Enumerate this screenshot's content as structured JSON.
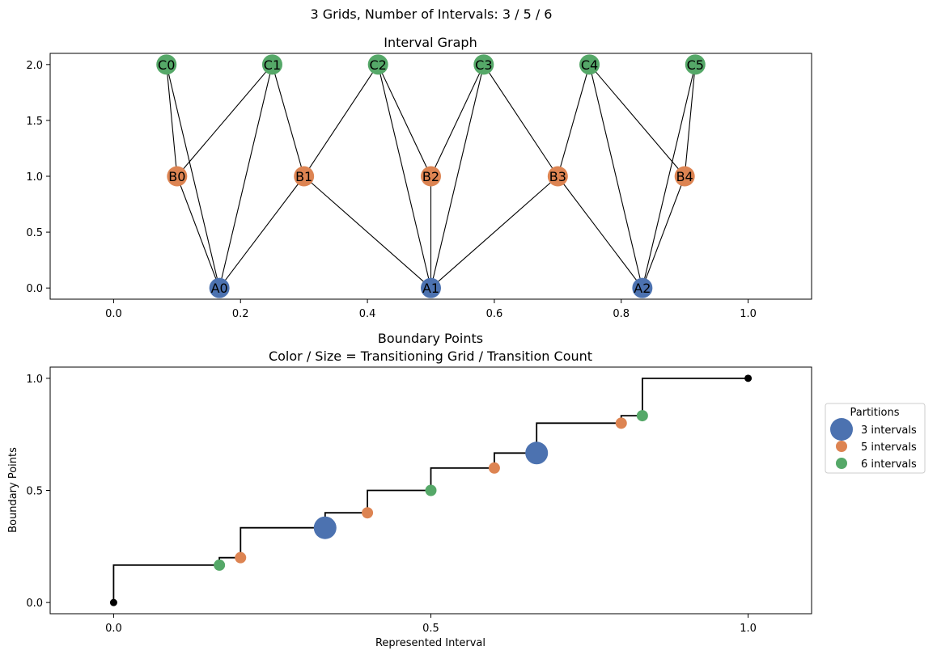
{
  "suptitle": "3 Grids, Number of Intervals: 3 / 5 / 6",
  "chart_data": [
    {
      "type": "scatter",
      "subtype": "graph",
      "title": "Interval Graph",
      "xlabel": "",
      "ylabel": "",
      "xlim": [
        -0.1,
        1.1
      ],
      "ylim": [
        -0.1,
        2.1
      ],
      "x_ticks": [
        0.0,
        0.2,
        0.4,
        0.6,
        0.8,
        1.0
      ],
      "x_tick_labels": [
        "0.0",
        "0.2",
        "0.4",
        "0.6",
        "0.8",
        "1.0"
      ],
      "y_ticks": [
        0.0,
        0.5,
        1.0,
        1.5,
        2.0
      ],
      "y_tick_labels": [
        "0.0",
        "0.5",
        "1.0",
        "1.5",
        "2.0"
      ],
      "grid": false,
      "colors": {
        "A": "#4c72b0",
        "B": "#dd8452",
        "C": "#55a868"
      },
      "nodes": [
        {
          "id": "A0",
          "label": "A0",
          "group": "A",
          "x": 0.1667,
          "y": 0
        },
        {
          "id": "A1",
          "label": "A1",
          "group": "A",
          "x": 0.5,
          "y": 0
        },
        {
          "id": "A2",
          "label": "A2",
          "group": "A",
          "x": 0.8333,
          "y": 0
        },
        {
          "id": "B0",
          "label": "B0",
          "group": "B",
          "x": 0.1,
          "y": 1
        },
        {
          "id": "B1",
          "label": "B1",
          "group": "B",
          "x": 0.3,
          "y": 1
        },
        {
          "id": "B2",
          "label": "B2",
          "group": "B",
          "x": 0.5,
          "y": 1
        },
        {
          "id": "B3",
          "label": "B3",
          "group": "B",
          "x": 0.7,
          "y": 1
        },
        {
          "id": "B4",
          "label": "B4",
          "group": "B",
          "x": 0.9,
          "y": 1
        },
        {
          "id": "C0",
          "label": "C0",
          "group": "C",
          "x": 0.0833,
          "y": 2
        },
        {
          "id": "C1",
          "label": "C1",
          "group": "C",
          "x": 0.25,
          "y": 2
        },
        {
          "id": "C2",
          "label": "C2",
          "group": "C",
          "x": 0.4167,
          "y": 2
        },
        {
          "id": "C3",
          "label": "C3",
          "group": "C",
          "x": 0.5833,
          "y": 2
        },
        {
          "id": "C4",
          "label": "C4",
          "group": "C",
          "x": 0.75,
          "y": 2
        },
        {
          "id": "C5",
          "label": "C5",
          "group": "C",
          "x": 0.9167,
          "y": 2
        }
      ],
      "edges": [
        [
          "C0",
          "B0"
        ],
        [
          "C0",
          "A0"
        ],
        [
          "C1",
          "B0"
        ],
        [
          "C1",
          "A0"
        ],
        [
          "C1",
          "B1"
        ],
        [
          "B0",
          "A0"
        ],
        [
          "B1",
          "A0"
        ],
        [
          "C2",
          "B1"
        ],
        [
          "C2",
          "B2"
        ],
        [
          "C2",
          "A1"
        ],
        [
          "C3",
          "B2"
        ],
        [
          "C3",
          "A1"
        ],
        [
          "C3",
          "B3"
        ],
        [
          "B1",
          "A1"
        ],
        [
          "B2",
          "A1"
        ],
        [
          "B3",
          "A1"
        ],
        [
          "C4",
          "B3"
        ],
        [
          "C4",
          "B4"
        ],
        [
          "C4",
          "A2"
        ],
        [
          "C5",
          "B4"
        ],
        [
          "C5",
          "A2"
        ],
        [
          "B3",
          "A2"
        ],
        [
          "B4",
          "A2"
        ]
      ]
    },
    {
      "type": "scatter",
      "title": "Boundary Points\nColor / Size = Transitioning Grid / Transition Count",
      "title_lines": [
        "Boundary Points",
        "Color / Size = Transitioning Grid / Transition Count"
      ],
      "xlabel": "Represented Interval",
      "ylabel": "Boundary Points",
      "xlim": [
        -0.1,
        1.1
      ],
      "ylim": [
        -0.05,
        1.05
      ],
      "x_ticks": [
        0.0,
        0.5,
        1.0
      ],
      "x_tick_labels": [
        "0.0",
        "0.5",
        "1.0"
      ],
      "y_ticks": [
        0.0,
        0.5,
        1.0
      ],
      "y_tick_labels": [
        "0.0",
        "0.5",
        "1.0"
      ],
      "grid": false,
      "step_color": "#000000",
      "step_points": [
        [
          0,
          0
        ],
        [
          0,
          0.1667
        ],
        [
          0.1667,
          0.1667
        ],
        [
          0.1667,
          0.2
        ],
        [
          0.2,
          0.2
        ],
        [
          0.2,
          0.3333
        ],
        [
          0.3333,
          0.3333
        ],
        [
          0.3333,
          0.4
        ],
        [
          0.4,
          0.4
        ],
        [
          0.4,
          0.5
        ],
        [
          0.5,
          0.5
        ],
        [
          0.5,
          0.6
        ],
        [
          0.6,
          0.6
        ],
        [
          0.6,
          0.6667
        ],
        [
          0.6667,
          0.6667
        ],
        [
          0.6667,
          0.8
        ],
        [
          0.8,
          0.8
        ],
        [
          0.8,
          0.8333
        ],
        [
          0.8333,
          0.8333
        ],
        [
          0.8333,
          1.0
        ],
        [
          1.0,
          1.0
        ]
      ],
      "endpoints": [
        {
          "x": 0,
          "y": 0,
          "color": "#000000"
        },
        {
          "x": 1.0,
          "y": 1.0,
          "color": "#000000"
        }
      ],
      "series": [
        {
          "name": "3 intervals",
          "color": "#4c72b0",
          "size": 3,
          "x": [
            0.3333,
            0.6667
          ],
          "y": [
            0.3333,
            0.6667
          ]
        },
        {
          "name": "5 intervals",
          "color": "#dd8452",
          "size": 1,
          "x": [
            0.2,
            0.4,
            0.6,
            0.8
          ],
          "y": [
            0.2,
            0.4,
            0.6,
            0.8
          ]
        },
        {
          "name": "6 intervals",
          "color": "#55a868",
          "size": 1,
          "x": [
            0.1667,
            0.5,
            0.8333
          ],
          "y": [
            0.1667,
            0.5,
            0.8333
          ]
        }
      ],
      "legend": {
        "title": "Partitions",
        "placement": "outside-right",
        "entries": [
          "3 intervals",
          "5 intervals",
          "6 intervals"
        ]
      }
    }
  ]
}
